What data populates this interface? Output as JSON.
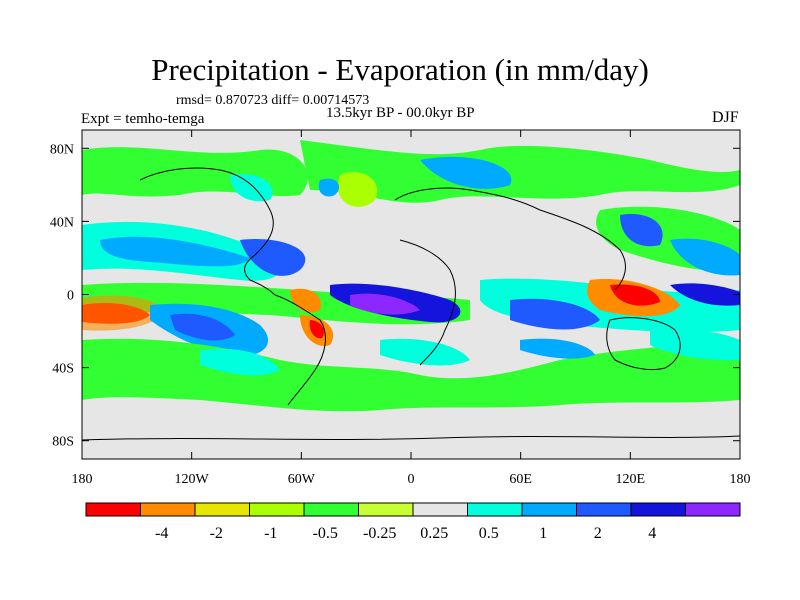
{
  "title": "Precipitation - Evaporation (in mm/day)",
  "stats": "rmsd= 0.870723  diff= 0.00714573",
  "experiment": "Expt = temho-temga",
  "period": "13.5kyr BP - 00.0kyr BP",
  "season": "DJF",
  "y_ticks": [
    {
      "label": "80N",
      "value": 80
    },
    {
      "label": "40N",
      "value": 40
    },
    {
      "label": "0",
      "value": 0
    },
    {
      "label": "40S",
      "value": -40
    },
    {
      "label": "80S",
      "value": -80
    }
  ],
  "x_ticks": [
    {
      "label": "180",
      "value": -180
    },
    {
      "label": "120W",
      "value": -120
    },
    {
      "label": "60W",
      "value": -60
    },
    {
      "label": "0",
      "value": 0
    },
    {
      "label": "60E",
      "value": 60
    },
    {
      "label": "120E",
      "value": 120
    },
    {
      "label": "180",
      "value": 180
    }
  ],
  "colorbar": {
    "colors": [
      "#ff0000",
      "#ff8c00",
      "#e6e600",
      "#aaff00",
      "#32ff32",
      "#c8ff32",
      "#e6e6e6",
      "#00ffdc",
      "#00aaff",
      "#1e5aff",
      "#1414dc",
      "#8c28ff"
    ],
    "labels": [
      "-4",
      "-2",
      "-1",
      "-0.5",
      "-0.25",
      "0.25",
      "0.5",
      "1",
      "2",
      "4"
    ]
  },
  "palette": {
    "ocean_background": "#e6e6e6",
    "coastline": "#000000"
  }
}
